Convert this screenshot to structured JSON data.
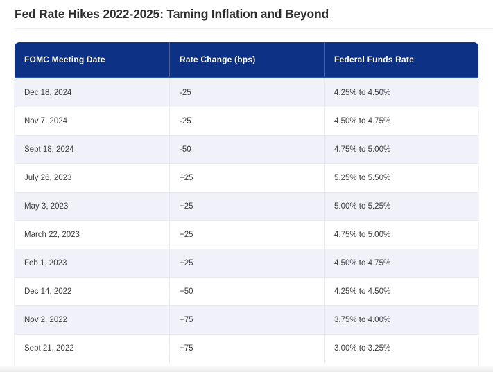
{
  "page": {
    "title": "Fed Rate Hikes 2022-2025: Taming Inflation and Beyond"
  },
  "table": {
    "columns": [
      "FOMC Meeting Date",
      "Rate Change (bps)",
      "Federal Funds Rate"
    ],
    "rows": [
      [
        "Dec 18, 2024",
        "-25",
        "4.25% to 4.50%"
      ],
      [
        "Nov 7, 2024",
        "-25",
        "4.50% to 4.75%"
      ],
      [
        "Sept 18, 2024",
        "-50",
        "4.75% to 5.00%"
      ],
      [
        "July 26, 2023",
        "+25",
        "5.25% to 5.50%"
      ],
      [
        "May 3, 2023",
        "+25",
        "5.00% to 5.25%"
      ],
      [
        "March 22, 2023",
        "+25",
        "4.75% to 5.00%"
      ],
      [
        "Feb 1, 2023",
        "+25",
        "4.50% to 4.75%"
      ],
      [
        "Dec 14, 2022",
        "+50",
        "4.25% to 4.50%"
      ],
      [
        "Nov 2, 2022",
        "+75",
        "3.75% to 4.00%"
      ],
      [
        "Sept 21, 2022",
        "+75",
        "3.00% to 3.25%"
      ]
    ]
  },
  "chart_data": {
    "type": "table",
    "title": "Fed Rate Hikes 2022-2025: Taming Inflation and Beyond",
    "columns": [
      "FOMC Meeting Date",
      "Rate Change (bps)",
      "Federal Funds Rate"
    ],
    "rows": [
      {
        "date": "Dec 18, 2024",
        "rate_change_bps": -25,
        "federal_funds_rate": "4.25% to 4.50%"
      },
      {
        "date": "Nov 7, 2024",
        "rate_change_bps": -25,
        "federal_funds_rate": "4.50% to 4.75%"
      },
      {
        "date": "Sept 18, 2024",
        "rate_change_bps": -50,
        "federal_funds_rate": "4.75% to 5.00%"
      },
      {
        "date": "July 26, 2023",
        "rate_change_bps": 25,
        "federal_funds_rate": "5.25% to 5.50%"
      },
      {
        "date": "May 3, 2023",
        "rate_change_bps": 25,
        "federal_funds_rate": "5.00% to 5.25%"
      },
      {
        "date": "March 22, 2023",
        "rate_change_bps": 25,
        "federal_funds_rate": "4.75% to 5.00%"
      },
      {
        "date": "Feb 1, 2023",
        "rate_change_bps": 25,
        "federal_funds_rate": "4.50% to 4.75%"
      },
      {
        "date": "Dec 14, 2022",
        "rate_change_bps": 50,
        "federal_funds_rate": "4.25% to 4.50%"
      },
      {
        "date": "Nov 2, 2022",
        "rate_change_bps": 75,
        "federal_funds_rate": "3.75% to 4.00%"
      },
      {
        "date": "Sept 21, 2022",
        "rate_change_bps": 75,
        "federal_funds_rate": "3.00% to 3.25%"
      }
    ]
  },
  "colors": {
    "header_bg": "#0d3184",
    "header_border": "#2a55ad",
    "header_text": "#ffffff",
    "row_alt_bg": "#f1f2f9",
    "row_bg": "#ffffff",
    "grid_line": "#e9eaf1",
    "title_text": "#2d2d30",
    "cell_text": "#3b3b40",
    "divider": "#ededee"
  }
}
